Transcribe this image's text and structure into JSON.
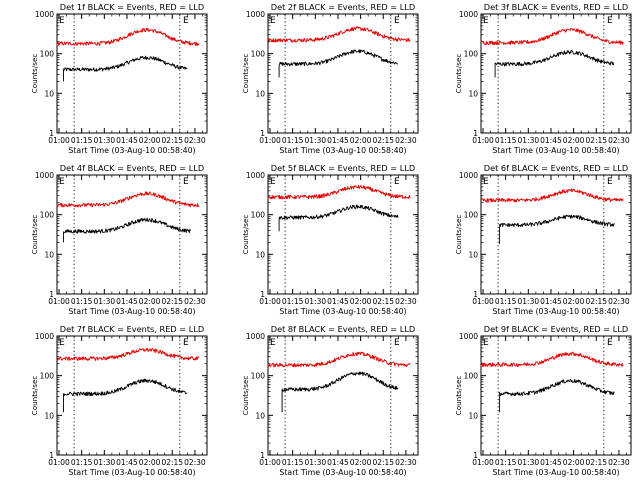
{
  "colors": {
    "events": "#000000",
    "lld": "#e60000",
    "axis": "#000000",
    "background": "#ffffff"
  },
  "common": {
    "xlabel": "Start Time (03-Aug-10 00:58:40)",
    "ylabel": "Counts/sec",
    "x_ticks": [
      "01:00",
      "01:15",
      "01:30",
      "01:45",
      "02:00",
      "02:15",
      "02:30"
    ],
    "y_ticks": [
      "1",
      "10",
      "100",
      "1000"
    ],
    "ylim": [
      1,
      1000
    ],
    "xlim": [
      "00:58:40",
      "02:38"
    ],
    "y_scale": "log",
    "corner_mark": "E",
    "dotted_vlines": [
      "01:10",
      "02:20"
    ]
  },
  "chart_data": [
    {
      "type": "line",
      "title": "Det 1f BLACK = Events, RED = LLD",
      "series": [
        {
          "name": "Events",
          "start": "01:03",
          "end": "02:25",
          "base": 40,
          "peak": 80,
          "peak_time": "01:58",
          "width_min": 15,
          "first_point": 20
        },
        {
          "name": "LLD",
          "start": "00:58:40",
          "end": "02:33",
          "base": 180,
          "peak": 400,
          "peak_time": "01:58",
          "width_min": 15
        }
      ]
    },
    {
      "type": "line",
      "title": "Det 2f BLACK = Events, RED = LLD",
      "series": [
        {
          "name": "Events",
          "start": "01:06",
          "end": "02:25",
          "base": 55,
          "peak": 115,
          "peak_time": "01:58",
          "width_min": 15,
          "first_point": 25
        },
        {
          "name": "LLD",
          "start": "00:58:40",
          "end": "02:33",
          "base": 220,
          "peak": 430,
          "peak_time": "01:58",
          "width_min": 15
        }
      ]
    },
    {
      "type": "line",
      "title": "Det 3f BLACK = Events, RED = LLD",
      "series": [
        {
          "name": "Events",
          "start": "01:08",
          "end": "02:27",
          "base": 55,
          "peak": 110,
          "peak_time": "01:58",
          "width_min": 15,
          "first_point": 25
        },
        {
          "name": "LLD",
          "start": "00:58:40",
          "end": "02:33",
          "base": 190,
          "peak": 400,
          "peak_time": "01:58",
          "width_min": 15
        }
      ]
    },
    {
      "type": "line",
      "title": "Det 4f BLACK = Events, RED = LLD",
      "series": [
        {
          "name": "Events",
          "start": "01:03",
          "end": "02:27",
          "base": 38,
          "peak": 75,
          "peak_time": "01:58",
          "width_min": 15,
          "first_point": 20
        },
        {
          "name": "LLD",
          "start": "00:58:40",
          "end": "02:33",
          "base": 175,
          "peak": 340,
          "peak_time": "01:58",
          "width_min": 15
        }
      ]
    },
    {
      "type": "line",
      "title": "Det 5f BLACK = Events, RED = LLD",
      "series": [
        {
          "name": "Events",
          "start": "01:06",
          "end": "02:25",
          "base": 85,
          "peak": 160,
          "peak_time": "01:58",
          "width_min": 15,
          "first_point": 38
        },
        {
          "name": "LLD",
          "start": "00:58:40",
          "end": "02:33",
          "base": 280,
          "peak": 500,
          "peak_time": "01:58",
          "width_min": 15
        }
      ]
    },
    {
      "type": "line",
      "title": "Det 6f BLACK = Events, RED = LLD",
      "series": [
        {
          "name": "Events",
          "start": "01:11",
          "end": "02:27",
          "base": 55,
          "peak": 90,
          "peak_time": "01:58",
          "width_min": 15,
          "first_point": 18
        },
        {
          "name": "LLD",
          "start": "00:58:40",
          "end": "02:33",
          "base": 230,
          "peak": 400,
          "peak_time": "01:58",
          "width_min": 15
        }
      ]
    },
    {
      "type": "line",
      "title": "Det 7f BLACK = Events, RED = LLD",
      "series": [
        {
          "name": "Events",
          "start": "01:03",
          "end": "02:25",
          "base": 35,
          "peak": 75,
          "peak_time": "01:58",
          "width_min": 15,
          "first_point": 12
        },
        {
          "name": "LLD",
          "start": "00:58:40",
          "end": "02:33",
          "base": 270,
          "peak": 450,
          "peak_time": "01:58",
          "width_min": 15
        }
      ]
    },
    {
      "type": "line",
      "title": "Det 8f BLACK = Events, RED = LLD",
      "series": [
        {
          "name": "Events",
          "start": "01:08",
          "end": "02:25",
          "base": 45,
          "peak": 115,
          "peak_time": "01:58",
          "width_min": 15,
          "first_point": 12
        },
        {
          "name": "LLD",
          "start": "00:58:40",
          "end": "02:33",
          "base": 185,
          "peak": 360,
          "peak_time": "01:58",
          "width_min": 15
        }
      ]
    },
    {
      "type": "line",
      "title": "Det 9f BLACK = Events, RED = LLD",
      "series": [
        {
          "name": "Events",
          "start": "01:11",
          "end": "02:27",
          "base": 35,
          "peak": 75,
          "peak_time": "01:58",
          "width_min": 15,
          "first_point": 12
        },
        {
          "name": "LLD",
          "start": "00:58:40",
          "end": "02:33",
          "base": 190,
          "peak": 360,
          "peak_time": "01:58",
          "width_min": 15
        }
      ]
    }
  ]
}
